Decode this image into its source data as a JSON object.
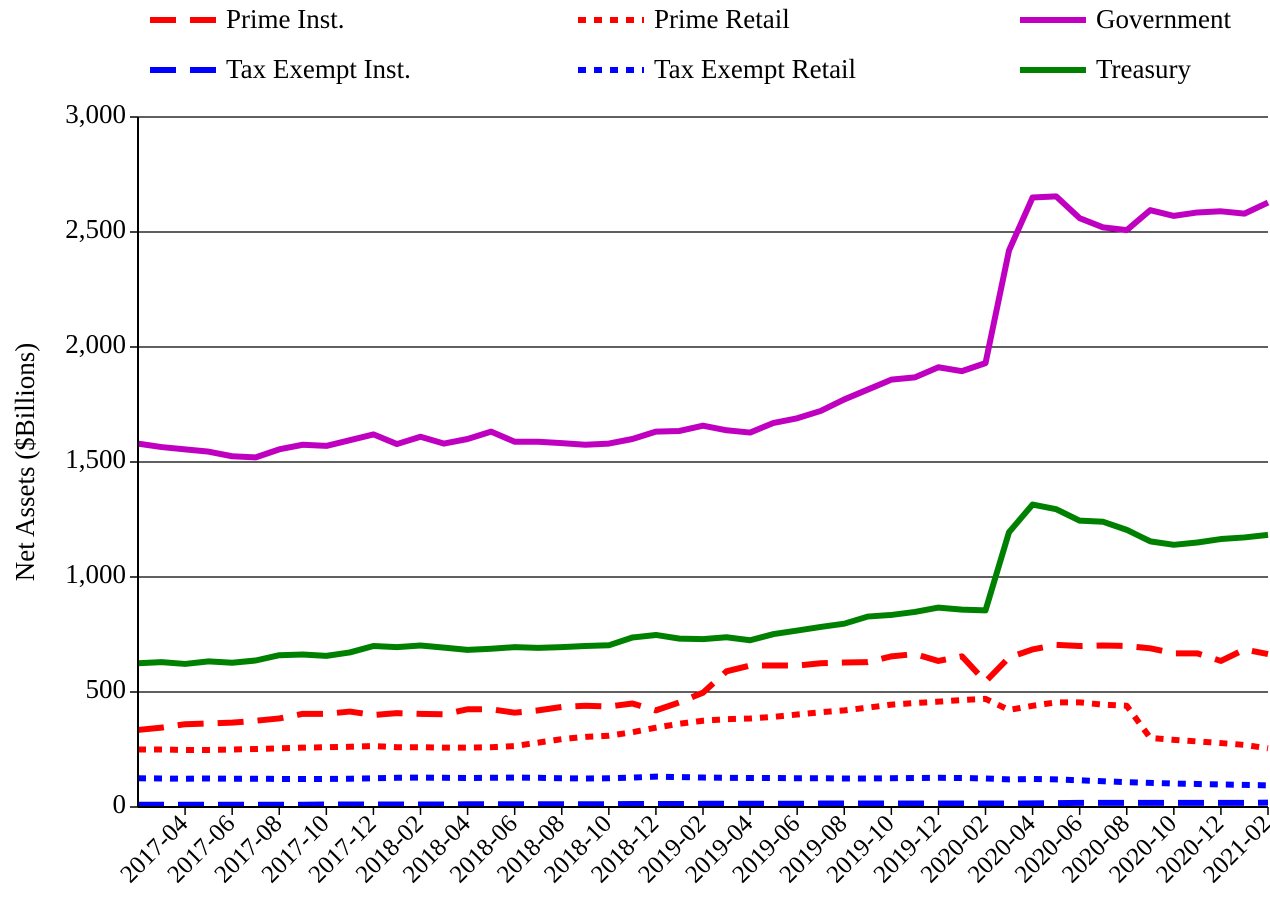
{
  "chart_data": {
    "type": "line",
    "ylabel": "Net Assets ($Billions)",
    "categories": [
      null,
      null,
      "2017-04",
      null,
      "2017-06",
      null,
      "2017-08",
      null,
      "2017-10",
      null,
      "2017-12",
      null,
      "2018-02",
      null,
      "2018-04",
      null,
      "2018-06",
      null,
      "2018-08",
      null,
      "2018-10",
      null,
      "2018-12",
      null,
      "2019-02",
      null,
      "2019-04",
      null,
      "2019-06",
      null,
      "2019-08",
      null,
      "2019-10",
      null,
      "2019-12",
      null,
      "2020-02",
      null,
      "2020-04",
      null,
      "2020-06",
      null,
      "2020-08",
      null,
      "2020-10",
      null,
      "2020-12",
      null,
      "2021-02"
    ],
    "ylim": [
      0,
      3000
    ],
    "yticks": [
      0,
      500,
      {
        "value": 1000,
        "label": "1,000"
      },
      {
        "value": 1500,
        "label": "1,500"
      },
      {
        "value": 2000,
        "label": "2,000"
      },
      {
        "value": 2500,
        "label": "2,500"
      },
      {
        "value": 3000,
        "label": "3,000"
      }
    ],
    "grid": true,
    "series": [
      {
        "name": "Prime Inst.",
        "color": "#ff0000",
        "style": "dashed",
        "values": [
          335,
          345,
          360,
          363,
          367,
          375,
          385,
          405,
          405,
          415,
          400,
          408,
          405,
          403,
          425,
          425,
          410,
          420,
          435,
          440,
          437,
          450,
          420,
          455,
          497,
          590,
          615,
          615,
          615,
          625,
          628,
          630,
          655,
          665,
          635,
          655,
          545,
          650,
          685,
          705,
          700,
          702,
          700,
          690,
          668,
          668,
          635,
          685,
          665
        ]
      },
      {
        "name": "Prime Retail",
        "color": "#ff0000",
        "style": "dotted",
        "values": [
          250,
          250,
          248,
          248,
          250,
          252,
          255,
          258,
          260,
          262,
          265,
          260,
          260,
          258,
          258,
          260,
          265,
          280,
          295,
          305,
          310,
          325,
          345,
          362,
          375,
          382,
          385,
          392,
          402,
          412,
          420,
          432,
          445,
          452,
          458,
          465,
          470,
          422,
          440,
          455,
          455,
          445,
          440,
          300,
          292,
          285,
          278,
          270,
          255
        ]
      },
      {
        "name": "Government",
        "color": "#c000c0",
        "style": "solid",
        "values": [
          1580,
          1565,
          1555,
          1545,
          1525,
          1520,
          1555,
          1575,
          1570,
          1595,
          1620,
          1578,
          1610,
          1580,
          1600,
          1632,
          1588,
          1588,
          1582,
          1575,
          1580,
          1600,
          1632,
          1635,
          1658,
          1638,
          1628,
          1670,
          1690,
          1722,
          1772,
          1815,
          1858,
          1868,
          1912,
          1895,
          1930,
          2420,
          2650,
          2655,
          2560,
          2520,
          2508,
          2595,
          2570,
          2585,
          2590,
          2580,
          2628
        ]
      },
      {
        "name": "Tax Exempt Inst.",
        "color": "#0000ff",
        "style": "dashed",
        "values": [
          10,
          10,
          10,
          10,
          10,
          10,
          10,
          10,
          11,
          11,
          11,
          11,
          11,
          11,
          12,
          12,
          12,
          12,
          12,
          12,
          12,
          13,
          13,
          13,
          14,
          14,
          14,
          14,
          14,
          15,
          15,
          15,
          15,
          15,
          15,
          15,
          15,
          15,
          16,
          17,
          18,
          18,
          18,
          18,
          18,
          18,
          18,
          18,
          19
        ]
      },
      {
        "name": "Tax Exempt Retail",
        "color": "#0000ff",
        "style": "dotted",
        "values": [
          125,
          124,
          123,
          124,
          123,
          123,
          122,
          122,
          122,
          123,
          125,
          127,
          128,
          127,
          126,
          127,
          128,
          127,
          125,
          124,
          125,
          128,
          132,
          130,
          128,
          127,
          126,
          126,
          125,
          125,
          124,
          124,
          125,
          126,
          127,
          126,
          124,
          120,
          122,
          120,
          116,
          112,
          108,
          105,
          102,
          100,
          98,
          96,
          94
        ]
      },
      {
        "name": "Treasury",
        "color": "#008000",
        "style": "solid",
        "values": [
          625,
          630,
          622,
          633,
          627,
          637,
          660,
          663,
          657,
          672,
          700,
          695,
          702,
          693,
          683,
          688,
          695,
          692,
          695,
          700,
          703,
          737,
          748,
          732,
          730,
          738,
          725,
          752,
          767,
          783,
          797,
          828,
          835,
          848,
          867,
          858,
          855,
          1195,
          1315,
          1295,
          1245,
          1240,
          1205,
          1155,
          1140,
          1150,
          1165,
          1172,
          1183
        ]
      }
    ]
  }
}
